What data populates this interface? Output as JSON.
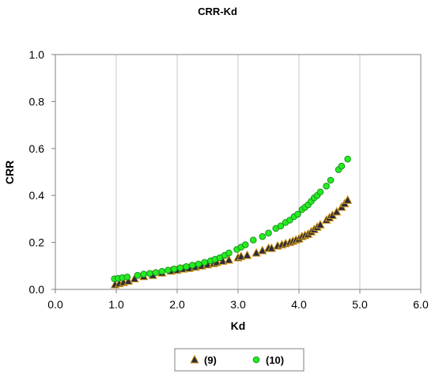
{
  "chart_data": {
    "type": "scatter",
    "title": "CRR-Kd",
    "xlabel": "Kd",
    "ylabel": "CRR",
    "xlim": [
      0,
      6
    ],
    "ylim": [
      0,
      1
    ],
    "x_ticks": [
      "0.0",
      "1.0",
      "2.0",
      "3.0",
      "4.0",
      "5.0",
      "6.0"
    ],
    "y_ticks": [
      "0.0",
      "0.2",
      "0.4",
      "0.6",
      "0.8",
      "1.0"
    ],
    "grid": "vertical",
    "legend_position": "bottom",
    "series": [
      {
        "name": "(9)",
        "marker": "triangle",
        "color": "#2b2b3b",
        "edge_color": "#d49a1a",
        "points": [
          [
            0.98,
            0.02
          ],
          [
            1.05,
            0.025
          ],
          [
            1.12,
            0.03
          ],
          [
            1.2,
            0.035
          ],
          [
            1.3,
            0.045
          ],
          [
            1.45,
            0.055
          ],
          [
            1.6,
            0.06
          ],
          [
            1.75,
            0.07
          ],
          [
            1.9,
            0.078
          ],
          [
            2.0,
            0.082
          ],
          [
            2.1,
            0.087
          ],
          [
            2.2,
            0.09
          ],
          [
            2.3,
            0.095
          ],
          [
            2.4,
            0.1
          ],
          [
            2.5,
            0.105
          ],
          [
            2.6,
            0.11
          ],
          [
            2.65,
            0.115
          ],
          [
            2.75,
            0.12
          ],
          [
            2.85,
            0.125
          ],
          [
            3.0,
            0.135
          ],
          [
            3.05,
            0.14
          ],
          [
            3.15,
            0.145
          ],
          [
            3.3,
            0.155
          ],
          [
            3.4,
            0.165
          ],
          [
            3.5,
            0.175
          ],
          [
            3.55,
            0.175
          ],
          [
            3.65,
            0.185
          ],
          [
            3.72,
            0.19
          ],
          [
            3.78,
            0.195
          ],
          [
            3.85,
            0.2
          ],
          [
            3.9,
            0.205
          ],
          [
            3.95,
            0.21
          ],
          [
            4.0,
            0.215
          ],
          [
            4.05,
            0.225
          ],
          [
            4.1,
            0.23
          ],
          [
            4.15,
            0.235
          ],
          [
            4.2,
            0.245
          ],
          [
            4.25,
            0.255
          ],
          [
            4.3,
            0.265
          ],
          [
            4.35,
            0.275
          ],
          [
            4.45,
            0.295
          ],
          [
            4.5,
            0.305
          ],
          [
            4.55,
            0.315
          ],
          [
            4.62,
            0.33
          ],
          [
            4.7,
            0.35
          ],
          [
            4.75,
            0.365
          ],
          [
            4.8,
            0.38
          ]
        ]
      },
      {
        "name": "(10)",
        "marker": "circle",
        "color": "#22ee22",
        "edge_color": "#1f8f1f",
        "points": [
          [
            0.97,
            0.045
          ],
          [
            1.03,
            0.047
          ],
          [
            1.1,
            0.05
          ],
          [
            1.18,
            0.053
          ],
          [
            1.35,
            0.06
          ],
          [
            1.45,
            0.065
          ],
          [
            1.55,
            0.068
          ],
          [
            1.65,
            0.072
          ],
          [
            1.75,
            0.077
          ],
          [
            1.85,
            0.082
          ],
          [
            1.95,
            0.087
          ],
          [
            2.05,
            0.092
          ],
          [
            2.15,
            0.097
          ],
          [
            2.25,
            0.103
          ],
          [
            2.35,
            0.108
          ],
          [
            2.45,
            0.115
          ],
          [
            2.55,
            0.122
          ],
          [
            2.62,
            0.128
          ],
          [
            2.7,
            0.135
          ],
          [
            2.78,
            0.145
          ],
          [
            2.85,
            0.155
          ],
          [
            2.98,
            0.17
          ],
          [
            3.05,
            0.18
          ],
          [
            3.12,
            0.19
          ],
          [
            3.25,
            0.21
          ],
          [
            3.4,
            0.225
          ],
          [
            3.5,
            0.24
          ],
          [
            3.62,
            0.26
          ],
          [
            3.7,
            0.27
          ],
          [
            3.78,
            0.285
          ],
          [
            3.85,
            0.295
          ],
          [
            3.92,
            0.31
          ],
          [
            3.98,
            0.32
          ],
          [
            4.05,
            0.34
          ],
          [
            4.1,
            0.35
          ],
          [
            4.15,
            0.36
          ],
          [
            4.2,
            0.375
          ],
          [
            4.25,
            0.39
          ],
          [
            4.3,
            0.4
          ],
          [
            4.35,
            0.415
          ],
          [
            4.45,
            0.44
          ],
          [
            4.52,
            0.465
          ],
          [
            4.65,
            0.51
          ],
          [
            4.7,
            0.525
          ],
          [
            4.8,
            0.555
          ]
        ]
      }
    ]
  }
}
